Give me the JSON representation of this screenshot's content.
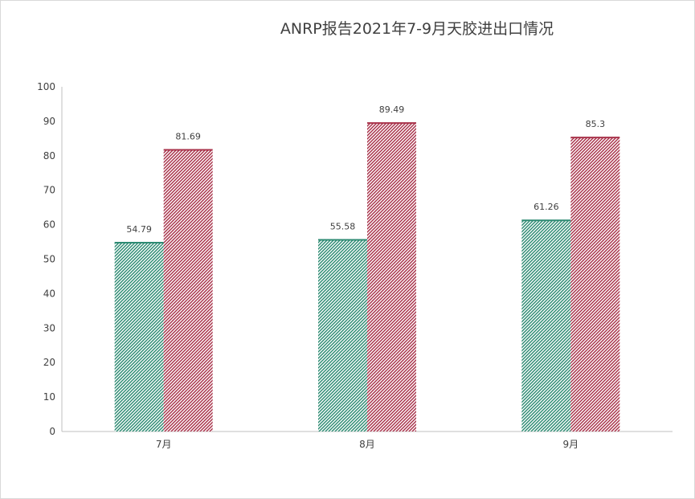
{
  "chart_data": {
    "type": "bar",
    "title": "ANRP报告2021年7-9月天胶进出口情况",
    "xlabel": "",
    "ylabel": "",
    "categories": [
      "7月",
      "8月",
      "9月"
    ],
    "series": [
      {
        "values": [
          54.79,
          55.58,
          61.26
        ],
        "color": "#2e8b73",
        "pattern": "diagonal-hatch"
      },
      {
        "values": [
          81.69,
          89.49,
          85.3
        ],
        "color": "#a8324a",
        "pattern": "diagonal-hatch"
      }
    ],
    "data_labels": [
      [
        "54.79",
        "55.58",
        "61.26"
      ],
      [
        "81.69",
        "89.49",
        "85.3"
      ]
    ],
    "ylim": [
      0,
      100
    ],
    "yticks": [
      0,
      10,
      20,
      30,
      40,
      50,
      60,
      70,
      80,
      90,
      100
    ],
    "grid": false,
    "legend": "none"
  }
}
